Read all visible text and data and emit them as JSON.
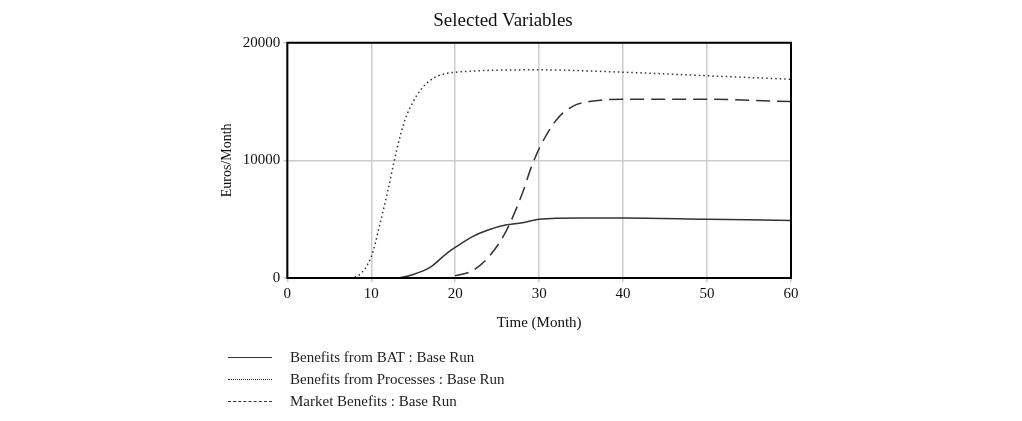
{
  "chart_data": {
    "type": "line",
    "title": "Selected Variables",
    "xlabel": "Time (Month)",
    "ylabel": "Euros/Month",
    "xlim": [
      0,
      60
    ],
    "xticks": [
      0,
      10,
      20,
      30,
      40,
      50,
      60
    ],
    "ylim": [
      0,
      20000
    ],
    "yticks": [
      0,
      10000,
      20000
    ],
    "grid": true,
    "legend": "bottom left",
    "marker": "none",
    "series": [
      {
        "name": "Benefits from BAT : Base Run",
        "color": "#333333",
        "line_style": "solid",
        "x": [
          0,
          13,
          15,
          17,
          19,
          20,
          22,
          24,
          26,
          28,
          30,
          35,
          40,
          50,
          60
        ],
        "values": [
          0,
          0,
          300,
          900,
          2100,
          2600,
          3500,
          4100,
          4500,
          4700,
          5000,
          5100,
          5100,
          5000,
          4900
        ]
      },
      {
        "name": "Benefits from Processes : Base Run",
        "color": "#333333",
        "line_style": "dotted",
        "x": [
          0,
          7.5,
          10,
          11,
          12,
          13,
          14,
          15,
          16,
          17,
          18,
          20,
          30,
          40,
          50,
          60
        ],
        "values": [
          0,
          0,
          1800,
          4500,
          7500,
          10800,
          13400,
          15000,
          16100,
          16800,
          17200,
          17500,
          17700,
          17500,
          17200,
          16900
        ]
      },
      {
        "name": "Market Benefits : Base Run",
        "color": "#333333",
        "line_style": "dashed",
        "x": [
          0,
          19,
          20,
          22,
          24,
          26,
          28,
          29,
          30,
          32,
          34,
          36,
          40,
          50,
          60
        ],
        "values": [
          0,
          0,
          200,
          600,
          1800,
          3900,
          7200,
          9300,
          11000,
          13400,
          14600,
          15000,
          15200,
          15200,
          15000
        ]
      }
    ]
  }
}
